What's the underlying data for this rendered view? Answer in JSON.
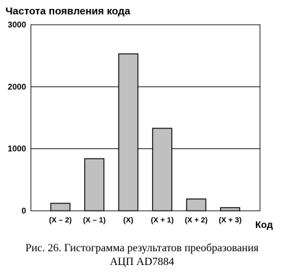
{
  "chart_data": {
    "type": "bar",
    "title": "Частота появления кода",
    "xlabel": "Код",
    "ylabel": "",
    "categories": [
      "(X – 2)",
      "(X – 1)",
      "(X)",
      "(X + 1)",
      "(X + 2)",
      "(X + 3)"
    ],
    "values": [
      120,
      840,
      2530,
      1330,
      190,
      50
    ],
    "ylim": [
      0,
      3000
    ],
    "yticks": [
      "0",
      "1000",
      "2000",
      "3000"
    ],
    "ytick_values": [
      0,
      1000,
      2000,
      3000
    ],
    "grid": true,
    "legend": "none",
    "colors": {
      "bar_fill": "#c0c0c0",
      "bar_stroke": "#000000",
      "grid": "#000000",
      "frame": "#000000"
    }
  },
  "caption": {
    "line1": "Рис. 26. Гистограмма результатов преобразования",
    "line2": "АЦП AD7884"
  }
}
